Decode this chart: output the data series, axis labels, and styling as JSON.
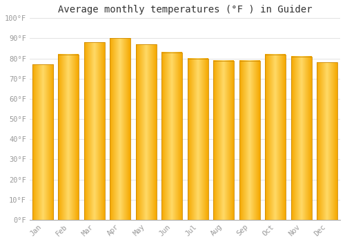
{
  "title": "Average monthly temperatures (°F ) in Guider",
  "months": [
    "Jan",
    "Feb",
    "Mar",
    "Apr",
    "May",
    "Jun",
    "Jul",
    "Aug",
    "Sep",
    "Oct",
    "Nov",
    "Dec"
  ],
  "values": [
    77,
    82,
    88,
    90,
    87,
    83,
    80,
    79,
    79,
    82,
    81,
    78
  ],
  "bar_color_left": "#F5A800",
  "bar_color_center": "#FFD966",
  "bar_color_right": "#F5A800",
  "bar_edge_color": "#CC8800",
  "ylim": [
    0,
    100
  ],
  "yticks": [
    0,
    10,
    20,
    30,
    40,
    50,
    60,
    70,
    80,
    90,
    100
  ],
  "ytick_labels": [
    "0°F",
    "10°F",
    "20°F",
    "30°F",
    "40°F",
    "50°F",
    "60°F",
    "70°F",
    "80°F",
    "90°F",
    "100°F"
  ],
  "background_color": "#FFFFFF",
  "grid_color": "#DDDDDD",
  "title_fontsize": 10,
  "tick_fontsize": 7.5,
  "bar_width": 0.8
}
